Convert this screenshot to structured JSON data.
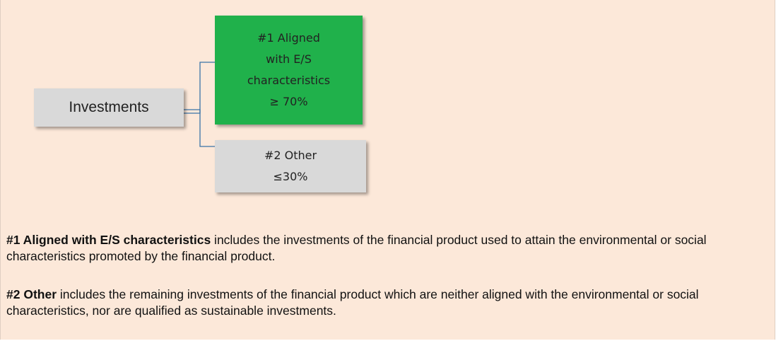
{
  "nodes": [
    {
      "label": "Investments"
    },
    {
      "lines": [
        "#1 Aligned",
        "with E/S",
        "characteristics",
        "≥ 70%"
      ]
    },
    {
      "lines": [
        "#2 Other",
        "≤30%"
      ]
    }
  ],
  "notes": [
    {
      "term": "#1 Aligned with E/S characteristics",
      "text": " includes the investments of the financial product used to attain the environmental or social characteristics promoted by the financial product."
    },
    {
      "term": "#2 Other",
      "text": " includes the remaining investments of the financial product which are neither aligned with the environmental or social characteristics, nor are qualified as sustainable investments."
    }
  ]
}
